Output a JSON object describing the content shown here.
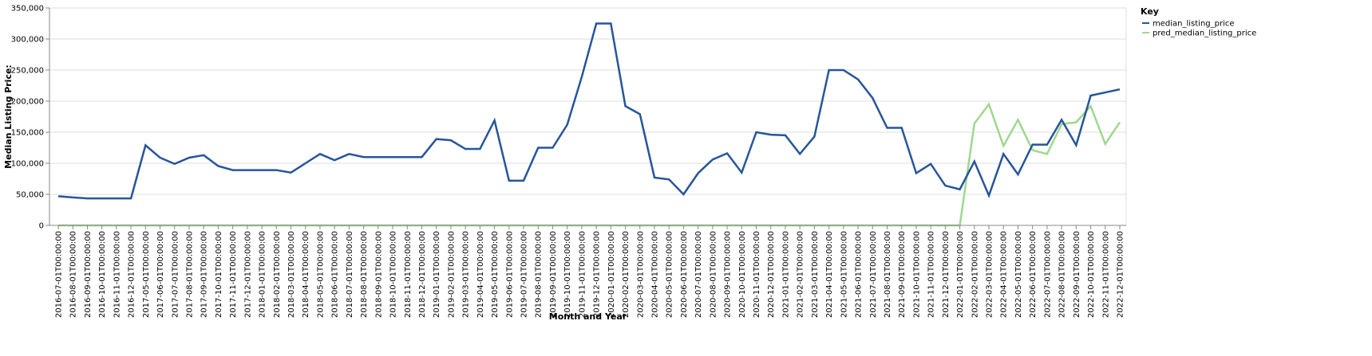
{
  "chart_data": {
    "type": "line",
    "xlabel": "Month and Year",
    "ylabel": "Median Listing Price:",
    "ylim": [
      0,
      350000
    ],
    "yticks": [
      0,
      50000,
      100000,
      150000,
      200000,
      250000,
      300000,
      350000
    ],
    "grid": true,
    "legend": {
      "title": "Key",
      "position": "top-right"
    },
    "x": [
      "2016-07-01T00:00:00",
      "2016-08-01T00:00:00",
      "2016-09-01T00:00:00",
      "2016-10-01T00:00:00",
      "2016-11-01T00:00:00",
      "2016-12-01T00:00:00",
      "2017-05-01T00:00:00",
      "2017-06-01T00:00:00",
      "2017-07-01T00:00:00",
      "2017-08-01T00:00:00",
      "2017-09-01T00:00:00",
      "2017-10-01T00:00:00",
      "2017-11-01T00:00:00",
      "2017-12-01T00:00:00",
      "2018-01-01T00:00:00",
      "2018-02-01T00:00:00",
      "2018-03-01T00:00:00",
      "2018-04-01T00:00:00",
      "2018-05-01T00:00:00",
      "2018-06-01T00:00:00",
      "2018-07-01T00:00:00",
      "2018-08-01T00:00:00",
      "2018-09-01T00:00:00",
      "2018-10-01T00:00:00",
      "2018-11-01T00:00:00",
      "2018-12-01T00:00:00",
      "2019-01-01T00:00:00",
      "2019-02-01T00:00:00",
      "2019-03-01T00:00:00",
      "2019-04-01T00:00:00",
      "2019-05-01T00:00:00",
      "2019-06-01T00:00:00",
      "2019-07-01T00:00:00",
      "2019-08-01T00:00:00",
      "2019-09-01T00:00:00",
      "2019-10-01T00:00:00",
      "2019-11-01T00:00:00",
      "2019-12-01T00:00:00",
      "2020-01-01T00:00:00",
      "2020-02-01T00:00:00",
      "2020-03-01T00:00:00",
      "2020-04-01T00:00:00",
      "2020-05-01T00:00:00",
      "2020-06-01T00:00:00",
      "2020-07-01T00:00:00",
      "2020-08-01T00:00:00",
      "2020-09-01T00:00:00",
      "2020-10-01T00:00:00",
      "2020-11-01T00:00:00",
      "2020-12-01T00:00:00",
      "2021-01-01T00:00:00",
      "2021-02-01T00:00:00",
      "2021-03-01T00:00:00",
      "2021-04-01T00:00:00",
      "2021-05-01T00:00:00",
      "2021-06-01T00:00:00",
      "2021-07-01T00:00:00",
      "2021-08-01T00:00:00",
      "2021-09-01T00:00:00",
      "2021-10-01T00:00:00",
      "2021-11-01T00:00:00",
      "2021-12-01T00:00:00",
      "2022-01-01T00:00:00",
      "2022-02-01T00:00:00",
      "2022-03-01T00:00:00",
      "2022-04-01T00:00:00",
      "2022-05-01T00:00:00",
      "2022-06-01T00:00:00",
      "2022-07-01T00:00:00",
      "2022-08-01T00:00:00",
      "2022-09-01T00:00:00",
      "2022-10-01T00:00:00",
      "2022-11-01T00:00:00",
      "2022-12-01T00:00:00"
    ],
    "series": [
      {
        "name": "median_listing_price",
        "color": "#26559B",
        "values": [
          47000,
          45000,
          43500,
          43500,
          43500,
          43500,
          129000,
          109000,
          99000,
          109000,
          113000,
          95500,
          89000,
          89000,
          89000,
          89000,
          85000,
          100000,
          115000,
          105000,
          115000,
          110000,
          110000,
          110000,
          110000,
          110000,
          139000,
          137000,
          123000,
          123000,
          169000,
          72000,
          72000,
          125000,
          125000,
          162000,
          239000,
          325000,
          325000,
          192000,
          179000,
          77000,
          74000,
          50000,
          84000,
          106000,
          116000,
          85000,
          150000,
          146000,
          145000,
          115000,
          143000,
          250000,
          250000,
          235000,
          205000,
          157000,
          157000,
          84000,
          99000,
          64000,
          58000,
          103000,
          48000,
          115000,
          82000,
          130000,
          130000,
          170000,
          129000,
          209000,
          214000,
          219000
        ]
      },
      {
        "name": "pred_median_listing_price",
        "color": "#9ED88F",
        "values": [
          0,
          0,
          0,
          0,
          0,
          0,
          0,
          0,
          0,
          0,
          0,
          0,
          0,
          0,
          0,
          0,
          0,
          0,
          0,
          0,
          0,
          0,
          0,
          0,
          0,
          0,
          0,
          0,
          0,
          0,
          0,
          0,
          0,
          0,
          0,
          0,
          0,
          0,
          0,
          0,
          0,
          0,
          0,
          0,
          0,
          0,
          0,
          0,
          0,
          0,
          0,
          0,
          0,
          0,
          0,
          0,
          0,
          0,
          0,
          0,
          0,
          0,
          0,
          164000,
          195000,
          128000,
          170000,
          121000,
          115000,
          163000,
          166000,
          192000,
          131000,
          166000
        ]
      }
    ]
  }
}
